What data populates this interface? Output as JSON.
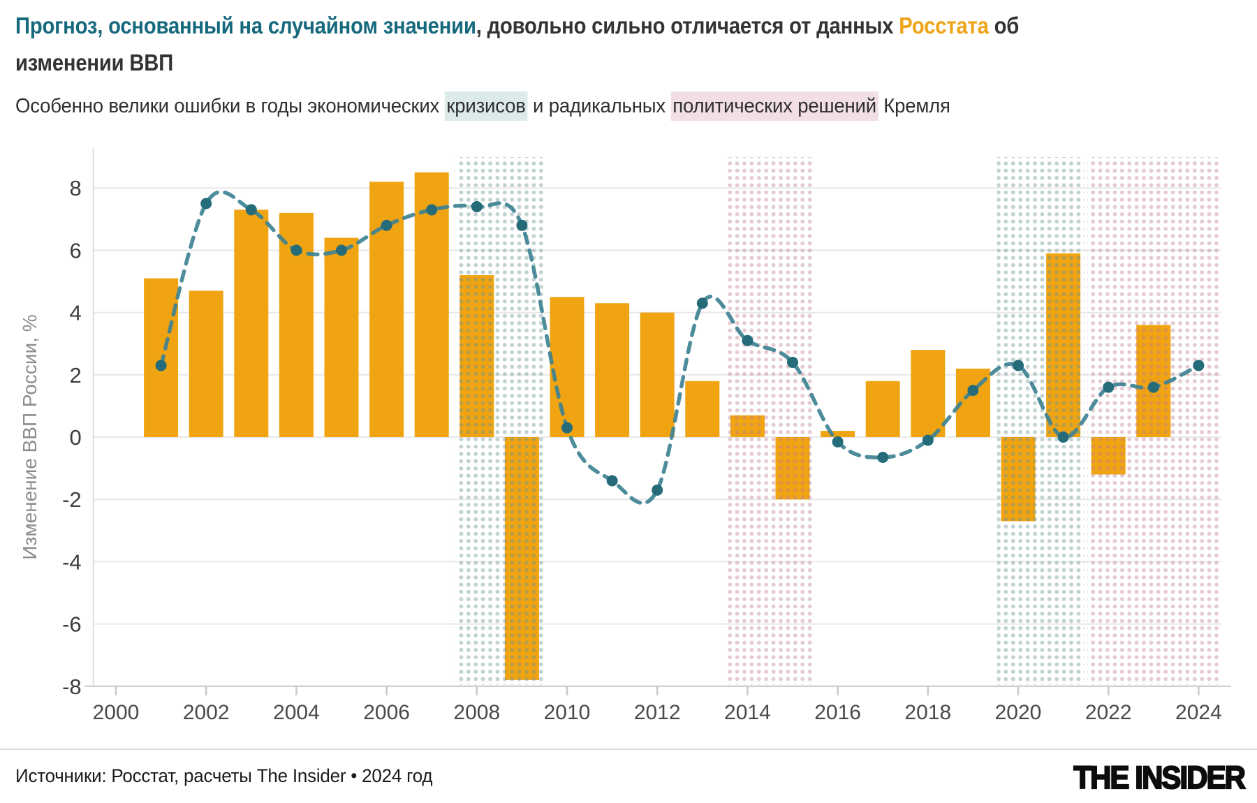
{
  "title": {
    "forecast_part": "Прогноз, основанный на случайном значении",
    "middle_part": ", довольно сильно отличается от данных ",
    "rosstat_word": "Росстата",
    "end_part": " об изменении ВВП"
  },
  "subtitle": {
    "part1": "Особенно велики ошибки в годы экономических ",
    "crisis_word": "кризисов",
    "part2": " и радикальных ",
    "political_words": "политических решений",
    "part3": " Кремля"
  },
  "footer": {
    "source": "Источники: Росстат, расчеты The Insider • 2024 год",
    "logo": "THE INSIDER"
  },
  "colors": {
    "title_accent_teal": "#16697d",
    "title_accent_orange": "#efa316",
    "subtitle_highlight_teal": "#ddeaea",
    "subtitle_highlight_pink": "#f2dfe3"
  },
  "chart_data": {
    "type": "bar+line",
    "ylabel": "Изменение ВВП России, %",
    "ylim": [
      -8,
      8
    ],
    "y_ticks": [
      -8,
      -6,
      -4,
      -2,
      0,
      2,
      4,
      6,
      8
    ],
    "x_ticks": [
      2000,
      2002,
      2004,
      2006,
      2008,
      2010,
      2012,
      2014,
      2016,
      2018,
      2020,
      2022,
      2024
    ],
    "x_range": [
      1999.5,
      2024.5
    ],
    "grid": "horizontal",
    "bars": {
      "name": "Данные Росстата",
      "color": "#f0a412",
      "years": [
        2001,
        2002,
        2003,
        2004,
        2005,
        2006,
        2007,
        2008,
        2009,
        2010,
        2011,
        2012,
        2013,
        2014,
        2015,
        2016,
        2017,
        2018,
        2019,
        2020,
        2021,
        2022,
        2023
      ],
      "values": [
        5.1,
        4.7,
        7.3,
        7.2,
        6.4,
        8.2,
        8.5,
        5.2,
        -7.8,
        4.5,
        4.3,
        4.0,
        1.8,
        0.7,
        -2.0,
        0.2,
        1.8,
        2.8,
        2.2,
        -2.7,
        5.9,
        -1.2,
        3.6
      ]
    },
    "line": {
      "name": "Прогноз, основанный на случайном значении",
      "color": "#3d8292",
      "point_color": "#256b7a",
      "style": "dashed",
      "years": [
        2001,
        2002,
        2003,
        2004,
        2005,
        2006,
        2007,
        2008,
        2009,
        2010,
        2011,
        2012,
        2013,
        2014,
        2015,
        2016,
        2017,
        2018,
        2019,
        2020,
        2021,
        2022,
        2023,
        2024
      ],
      "values": [
        2.3,
        7.5,
        7.3,
        6.0,
        6.0,
        6.8,
        7.3,
        7.4,
        6.8,
        0.3,
        -1.4,
        -1.7,
        4.3,
        3.1,
        2.4,
        -0.15,
        -0.65,
        -0.1,
        1.5,
        2.3,
        0.0,
        1.6,
        1.6,
        2.3
      ]
    },
    "region_styles": {
      "crisis": {
        "dot_color": "#6a9494",
        "dot_opacity": 0.42
      },
      "political": {
        "dot_color": "#bf7c8b",
        "dot_opacity": 0.4
      }
    },
    "regions": [
      {
        "kind": "crisis",
        "from": 2007.5,
        "to": 2009.5
      },
      {
        "kind": "political",
        "from": 2013.5,
        "to": 2015.5
      },
      {
        "kind": "crisis",
        "from": 2019.5,
        "to": 2021.5
      },
      {
        "kind": "political",
        "from": 2021.5,
        "to": 2024.5
      }
    ]
  }
}
